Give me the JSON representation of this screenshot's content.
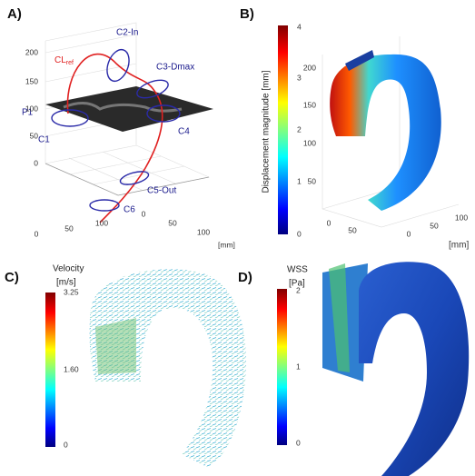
{
  "panel_a": {
    "label": "A)",
    "centerline": {
      "main": "CL",
      "sub": "ref"
    },
    "planes": [
      "C2-In",
      "C3-Dmax",
      "P1",
      "C1",
      "C4",
      "C5-Out",
      "C6"
    ],
    "z_ticks": [
      0,
      50,
      100,
      150,
      200
    ],
    "x_ticks": [
      0,
      50,
      100
    ],
    "y_ticks": [
      0,
      50,
      100
    ],
    "unit": "[mm]"
  },
  "panel_b": {
    "label": "B)",
    "colorbar_title": "Displacement magnitude [mm]",
    "colorbar_ticks": [
      0,
      1,
      2,
      3,
      4
    ],
    "z_ticks": [
      50,
      100,
      150,
      200
    ],
    "x_ticks": [
      0,
      50
    ],
    "y_ticks": [
      0,
      50,
      100
    ],
    "unit": "[mm]"
  },
  "panel_c": {
    "label": "C)",
    "colorbar_title": "Velocity",
    "colorbar_unit": "[m/s]",
    "colorbar_ticks": [
      "0",
      "1.60",
      "3.25"
    ]
  },
  "panel_d": {
    "label": "D)",
    "colorbar_title": "WSS",
    "colorbar_unit": "[Pa]",
    "colorbar_ticks": [
      0,
      1,
      2
    ]
  }
}
